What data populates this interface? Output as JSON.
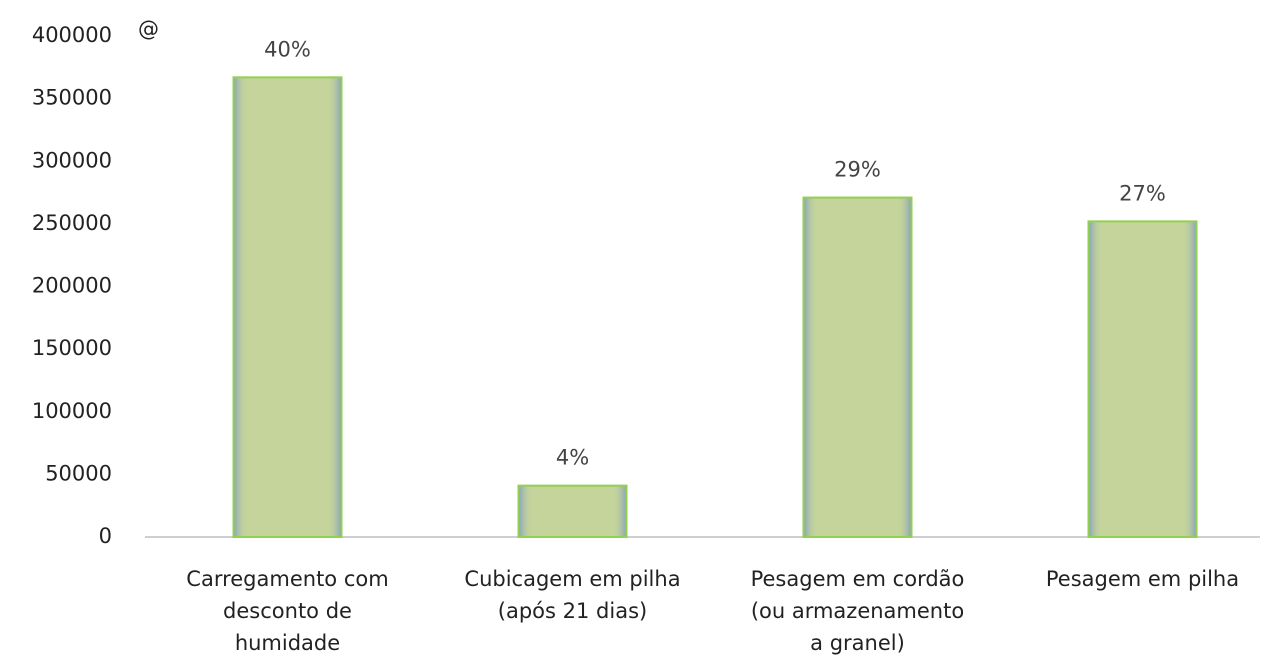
{
  "chart_data": {
    "type": "bar",
    "ylabel": "@",
    "categories": [
      [
        "Carregamento com",
        "desconto de",
        "humidade"
      ],
      [
        "Cubicagem em pilha",
        "(após 21 dias)"
      ],
      [
        "Pesagem em cordão",
        "(ou armazenamento",
        "a granel)"
      ],
      [
        "Pesagem em pilha"
      ]
    ],
    "values": [
      367000,
      41000,
      271000,
      252000
    ],
    "bar_annotations": [
      "40%",
      "4%",
      "29%",
      "27%"
    ],
    "color": "#c4d49b",
    "edge_color": "#92d050",
    "ylim": [
      0,
      400000
    ],
    "yticks": [
      0,
      50000,
      100000,
      150000,
      200000,
      250000,
      300000,
      350000,
      400000
    ],
    "grid": false
  }
}
